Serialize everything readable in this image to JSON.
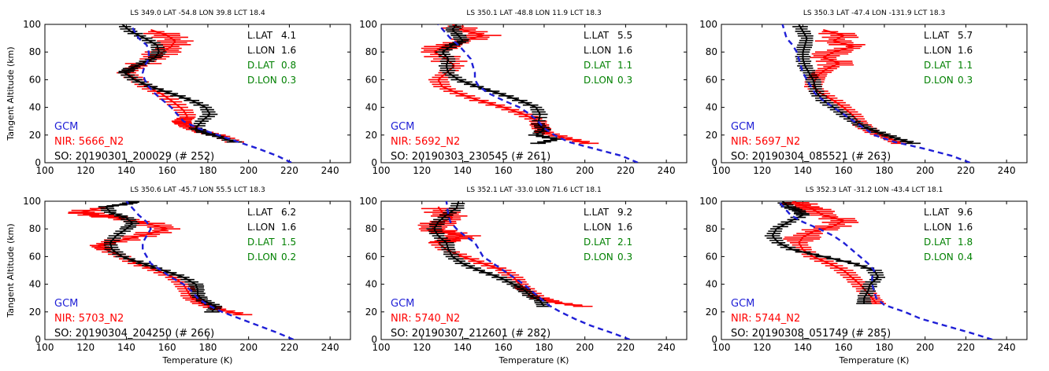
{
  "colors": {
    "gcm": "#1f1fd6",
    "nir": "#ff0000",
    "so": "#000000",
    "green": "#008000"
  },
  "chart_data": [
    {
      "type": "line",
      "header": "LS 349.0   LAT -54.8  LON   39.8   LCT 18.4",
      "legend": {
        "gcm": "GCM",
        "nir": "NIR: 5666_N2",
        "so": "SO: 20190301_200029 (# 252)"
      },
      "annotations": [
        {
          "label": "L.LAT",
          "value": "4.1",
          "color": "black"
        },
        {
          "label": "L.LON",
          "value": "1.6",
          "color": "black"
        },
        {
          "label": "D.LAT",
          "value": "0.8",
          "color": "green"
        },
        {
          "label": "D.LON",
          "value": "0.3",
          "color": "green"
        }
      ],
      "xlabel": "",
      "ylabel": "Tangent Altitude (km)",
      "xlim": [
        100,
        250
      ],
      "ylim": [
        0,
        100
      ],
      "xticks": [
        100,
        120,
        140,
        160,
        180,
        200,
        220,
        240
      ],
      "yticks": [
        0,
        20,
        40,
        60,
        80,
        100
      ],
      "series": [
        {
          "role": "gcm",
          "x": [
            221,
            214,
            205,
            195,
            185,
            175,
            168,
            165,
            162,
            158,
            154,
            151,
            149,
            148,
            149,
            151,
            151,
            150,
            146,
            142
          ],
          "y": [
            0,
            5,
            10,
            15,
            20,
            25,
            30,
            35,
            40,
            45,
            50,
            55,
            60,
            65,
            70,
            75,
            80,
            85,
            90,
            100
          ]
        },
        {
          "role": "nir",
          "x": [
            193,
            187,
            178,
            172,
            168,
            167,
            170,
            168,
            163,
            157,
            150,
            145,
            140,
            146,
            153,
            158,
            162,
            164,
            160,
            152
          ],
          "y": [
            15,
            19,
            22,
            25,
            28,
            30,
            33,
            38,
            44,
            50,
            55,
            60,
            65,
            70,
            75,
            80,
            84,
            88,
            92,
            96
          ]
        },
        {
          "role": "so",
          "x": [
            193,
            185,
            178,
            174,
            177,
            181,
            179,
            172,
            162,
            152,
            144,
            139,
            142,
            148,
            154,
            156,
            155,
            149,
            142,
            138
          ],
          "y": [
            15,
            19,
            22,
            25,
            30,
            35,
            40,
            45,
            50,
            55,
            60,
            65,
            68,
            72,
            76,
            80,
            85,
            90,
            95,
            100
          ]
        }
      ]
    },
    {
      "type": "line",
      "header": "LS 350.1   LAT -48.8  LON   11.9   LCT 18.3",
      "legend": {
        "gcm": "GCM",
        "nir": "NIR: 5692_N2",
        "so": "SO: 20190303_230545 (# 261)"
      },
      "annotations": [
        {
          "label": "L.LAT",
          "value": "5.5",
          "color": "black"
        },
        {
          "label": "L.LON",
          "value": "1.6",
          "color": "black"
        },
        {
          "label": "D.LAT",
          "value": "1.1",
          "color": "green"
        },
        {
          "label": "D.LON",
          "value": "0.3",
          "color": "green"
        }
      ],
      "xlabel": "",
      "ylabel": "",
      "xlim": [
        100,
        250
      ],
      "ylim": [
        0,
        100
      ],
      "xticks": [
        100,
        120,
        140,
        160,
        180,
        200,
        220,
        240
      ],
      "yticks": [
        0,
        20,
        40,
        60,
        80,
        100
      ],
      "series": [
        {
          "role": "gcm",
          "x": [
            226,
            218,
            205,
            192,
            185,
            180,
            177,
            173,
            168,
            160,
            153,
            148,
            146,
            146,
            145,
            144,
            141,
            138,
            134,
            128
          ],
          "y": [
            0,
            5,
            10,
            15,
            20,
            25,
            30,
            35,
            40,
            45,
            50,
            55,
            60,
            65,
            70,
            75,
            80,
            85,
            90,
            100
          ]
        },
        {
          "role": "nir",
          "x": [
            202,
            190,
            180,
            178,
            177,
            170,
            160,
            148,
            138,
            130,
            128,
            132,
            136,
            132,
            126,
            130,
            140,
            150,
            140,
            135
          ],
          "y": [
            14,
            18,
            22,
            26,
            30,
            35,
            40,
            45,
            50,
            55,
            60,
            65,
            70,
            75,
            80,
            84,
            88,
            92,
            96,
            100
          ]
        },
        {
          "role": "so",
          "x": [
            177,
            186,
            176,
            180,
            177,
            178,
            176,
            168,
            158,
            147,
            138,
            133,
            132,
            133,
            130,
            135,
            140,
            138,
            135,
            137
          ],
          "y": [
            14,
            17,
            20,
            24,
            28,
            35,
            40,
            45,
            50,
            55,
            60,
            65,
            70,
            75,
            80,
            85,
            88,
            92,
            96,
            100
          ]
        }
      ]
    },
    {
      "type": "line",
      "header": "LS 350.3   LAT -47.4  LON -131.9   LCT 18.3",
      "legend": {
        "gcm": "GCM",
        "nir": "NIR: 5697_N2",
        "so": "SO: 20190304_085521 (# 263)"
      },
      "annotations": [
        {
          "label": "L.LAT",
          "value": "5.7",
          "color": "black"
        },
        {
          "label": "L.LON",
          "value": "1.6",
          "color": "black"
        },
        {
          "label": "D.LAT",
          "value": "1.1",
          "color": "green"
        },
        {
          "label": "D.LON",
          "value": "0.3",
          "color": "green"
        }
      ],
      "xlabel": "",
      "ylabel": "",
      "xlim": [
        100,
        250
      ],
      "ylim": [
        0,
        100
      ],
      "xticks": [
        100,
        120,
        140,
        160,
        180,
        200,
        220,
        240
      ],
      "yticks": [
        0,
        20,
        40,
        60,
        80,
        100
      ],
      "series": [
        {
          "role": "gcm",
          "x": [
            222,
            213,
            200,
            185,
            175,
            170,
            165,
            160,
            155,
            150,
            146,
            144,
            142,
            140,
            139,
            138,
            137,
            135,
            132,
            130
          ],
          "y": [
            0,
            5,
            10,
            15,
            20,
            25,
            30,
            35,
            40,
            45,
            50,
            55,
            60,
            65,
            70,
            75,
            80,
            85,
            90,
            100
          ]
        },
        {
          "role": "nir",
          "x": [
            188,
            182,
            175,
            170,
            167,
            164,
            160,
            155,
            149,
            145,
            146,
            148,
            152,
            158,
            150,
            155,
            165,
            155,
            160,
            150
          ],
          "y": [
            14,
            18,
            22,
            26,
            30,
            35,
            40,
            45,
            50,
            55,
            60,
            64,
            68,
            72,
            76,
            80,
            84,
            88,
            92,
            96
          ]
        },
        {
          "role": "so",
          "x": [
            194,
            185,
            177,
            170,
            165,
            160,
            155,
            150,
            147,
            146,
            145,
            143,
            141,
            140,
            140,
            141,
            142,
            140,
            138
          ],
          "y": [
            14,
            18,
            22,
            26,
            30,
            35,
            40,
            45,
            50,
            55,
            60,
            65,
            70,
            75,
            80,
            85,
            90,
            95,
            100
          ]
        }
      ]
    },
    {
      "type": "line",
      "header": "LS 350.6   LAT -45.7  LON   55.5   LCT 18.3",
      "legend": {
        "gcm": "GCM",
        "nir": "NIR: 5703_N2",
        "so": "SO: 20190304_204250 (# 266)"
      },
      "annotations": [
        {
          "label": "L.LAT",
          "value": "6.2",
          "color": "black"
        },
        {
          "label": "L.LON",
          "value": "1.6",
          "color": "black"
        },
        {
          "label": "D.LAT",
          "value": "1.5",
          "color": "green"
        },
        {
          "label": "D.LON",
          "value": "0.2",
          "color": "green"
        }
      ],
      "xlabel": "Temperature (K)",
      "ylabel": "Tangent Altitude (km)",
      "xlim": [
        100,
        250
      ],
      "ylim": [
        0,
        100
      ],
      "xticks": [
        100,
        120,
        140,
        160,
        180,
        200,
        220,
        240
      ],
      "yticks": [
        0,
        20,
        40,
        60,
        80,
        100
      ],
      "series": [
        {
          "role": "gcm",
          "x": [
            222,
            214,
            205,
            196,
            187,
            180,
            175,
            172,
            168,
            162,
            157,
            152,
            150,
            148,
            148,
            150,
            152,
            150,
            146,
            140
          ],
          "y": [
            0,
            5,
            10,
            15,
            20,
            25,
            30,
            35,
            40,
            45,
            50,
            55,
            60,
            65,
            70,
            75,
            80,
            85,
            90,
            100
          ]
        },
        {
          "role": "nir",
          "x": [
            197,
            185,
            177,
            172,
            170,
            168,
            163,
            155,
            145,
            138,
            130,
            126,
            138,
            150,
            160,
            150,
            135,
            125,
            118,
            130
          ],
          "y": [
            18,
            22,
            26,
            30,
            35,
            40,
            45,
            50,
            55,
            60,
            65,
            68,
            72,
            76,
            80,
            84,
            88,
            90,
            92,
            96
          ]
        },
        {
          "role": "so",
          "x": [
            182,
            184,
            178,
            175,
            175,
            174,
            168,
            158,
            148,
            138,
            133,
            132,
            135,
            140,
            143,
            140,
            132,
            130,
            140,
            145
          ],
          "y": [
            20,
            24,
            28,
            32,
            36,
            40,
            45,
            50,
            55,
            60,
            65,
            70,
            75,
            80,
            84,
            88,
            92,
            96,
            98,
            100
          ]
        }
      ]
    },
    {
      "type": "line",
      "header": "LS 352.1   LAT -33.0  LON   71.6   LCT 18.1",
      "legend": {
        "gcm": "GCM",
        "nir": "NIR: 5740_N2",
        "so": "SO: 20190307_212601 (# 282)"
      },
      "annotations": [
        {
          "label": "L.LAT",
          "value": "9.2",
          "color": "black"
        },
        {
          "label": "L.LON",
          "value": "1.6",
          "color": "black"
        },
        {
          "label": "D.LAT",
          "value": "2.1",
          "color": "green"
        },
        {
          "label": "D.LON",
          "value": "0.3",
          "color": "green"
        }
      ],
      "xlabel": "Temperature (K)",
      "ylabel": "",
      "xlim": [
        100,
        250
      ],
      "ylim": [
        0,
        100
      ],
      "xticks": [
        100,
        120,
        140,
        160,
        180,
        200,
        220,
        240
      ],
      "yticks": [
        0,
        20,
        40,
        60,
        80,
        100
      ],
      "series": [
        {
          "role": "gcm",
          "x": [
            222,
            213,
            203,
            195,
            188,
            182,
            178,
            174,
            170,
            165,
            160,
            155,
            150,
            148,
            146,
            141,
            137,
            134,
            133,
            132
          ],
          "y": [
            0,
            5,
            10,
            15,
            20,
            25,
            30,
            35,
            40,
            45,
            50,
            55,
            60,
            65,
            70,
            75,
            80,
            85,
            90,
            100
          ]
        },
        {
          "role": "nir",
          "x": [
            199,
            185,
            178,
            172,
            168,
            165,
            160,
            150,
            140,
            132,
            128,
            135,
            140,
            130,
            125,
            128,
            135,
            130,
            128
          ],
          "y": [
            24,
            27,
            30,
            35,
            40,
            45,
            50,
            55,
            60,
            65,
            70,
            72,
            75,
            78,
            80,
            84,
            88,
            92,
            96
          ]
        },
        {
          "role": "so",
          "x": [
            180,
            178,
            173,
            170,
            165,
            158,
            148,
            140,
            135,
            133,
            132,
            128,
            126,
            128,
            132,
            137,
            138
          ],
          "y": [
            24,
            28,
            32,
            36,
            40,
            45,
            50,
            55,
            60,
            65,
            70,
            75,
            80,
            85,
            90,
            95,
            100
          ]
        }
      ]
    },
    {
      "type": "line",
      "header": "LS 352.3   LAT -31.2  LON  -43.4   LCT 18.1",
      "legend": {
        "gcm": "GCM",
        "nir": "NIR: 5744_N2",
        "so": "SO: 20190308_051749 (# 285)"
      },
      "annotations": [
        {
          "label": "L.LAT",
          "value": "9.6",
          "color": "black"
        },
        {
          "label": "L.LON",
          "value": "1.6",
          "color": "black"
        },
        {
          "label": "D.LAT",
          "value": "1.8",
          "color": "green"
        },
        {
          "label": "D.LON",
          "value": "0.4",
          "color": "green"
        }
      ],
      "xlabel": "Temperature (K)",
      "ylabel": "",
      "xlim": [
        100,
        250
      ],
      "ylim": [
        0,
        100
      ],
      "xticks": [
        100,
        120,
        140,
        160,
        180,
        200,
        220,
        240
      ],
      "yticks": [
        0,
        20,
        40,
        60,
        80,
        100
      ],
      "series": [
        {
          "role": "gcm",
          "x": [
            233,
            222,
            210,
            198,
            190,
            180,
            176,
            175,
            174,
            174,
            175,
            172,
            168,
            164,
            160,
            155,
            148,
            140,
            134,
            128
          ],
          "y": [
            0,
            5,
            10,
            15,
            20,
            25,
            30,
            35,
            40,
            45,
            50,
            55,
            60,
            65,
            70,
            75,
            80,
            85,
            90,
            100
          ]
        },
        {
          "role": "nir",
          "x": [
            176,
            174,
            171,
            168,
            164,
            160,
            153,
            145,
            140,
            138,
            140,
            145,
            155,
            160,
            150,
            145,
            140,
            135
          ],
          "y": [
            26,
            30,
            35,
            40,
            45,
            50,
            55,
            60,
            65,
            70,
            74,
            78,
            82,
            86,
            90,
            94,
            97,
            100
          ]
        },
        {
          "role": "so",
          "x": [
            170,
            170,
            172,
            173,
            177,
            175,
            165,
            150,
            135,
            128,
            125,
            127,
            133,
            140,
            138,
            133,
            130
          ],
          "y": [
            26,
            30,
            35,
            40,
            45,
            50,
            55,
            60,
            65,
            70,
            75,
            80,
            85,
            90,
            93,
            96,
            100
          ]
        }
      ]
    }
  ]
}
